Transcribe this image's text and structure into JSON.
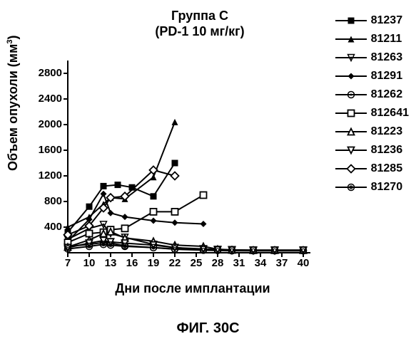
{
  "chart": {
    "type": "line-scatter",
    "title_line1": "Группа С",
    "title_line2": "(PD-1 10 мг/кг)",
    "ylabel_html": "Объем опухоли (мм³)",
    "ylabel_base": "Объем опухоли (мм",
    "ylabel_sup": "3",
    "ylabel_close": ")",
    "xlabel": "Дни после имплантации",
    "figure_label": "ФИГ. 30С",
    "background_color": "#ffffff",
    "axis_color": "#000000",
    "line_width": 2,
    "marker_size": 9,
    "xlim": [
      7,
      41
    ],
    "ylim": [
      0,
      3000
    ],
    "xticks": [
      7,
      10,
      13,
      16,
      19,
      22,
      25,
      28,
      31,
      34,
      37,
      40
    ],
    "yticks": [
      400,
      800,
      1200,
      1600,
      2000,
      2400,
      2800
    ],
    "font_family": "Arial",
    "title_fontsize": 18,
    "label_fontsize": 18,
    "tick_fontsize": 15,
    "legend_fontsize": 16,
    "series": [
      {
        "id": "81237",
        "label": "81237",
        "marker": "filled-square",
        "color": "#000000",
        "x": [
          7,
          10,
          12,
          14,
          16,
          19,
          22
        ],
        "y": [
          320,
          720,
          1040,
          1060,
          1020,
          880,
          1400
        ]
      },
      {
        "id": "81211",
        "label": "81211",
        "marker": "filled-triangle",
        "color": "#000000",
        "x": [
          7,
          10,
          12,
          13,
          15,
          19,
          22
        ],
        "y": [
          400,
          560,
          760,
          860,
          840,
          1180,
          2040
        ]
      },
      {
        "id": "81263",
        "label": "81263",
        "marker": "down-triangle-dot",
        "color": "#000000",
        "x": [
          7,
          10,
          12,
          13,
          15,
          19,
          22,
          26,
          28,
          30,
          33,
          36,
          40
        ],
        "y": [
          210,
          380,
          440,
          300,
          240,
          130,
          80,
          50,
          40,
          35,
          30,
          30,
          30
        ]
      },
      {
        "id": "81291",
        "label": "81291",
        "marker": "filled-diamond",
        "color": "#000000",
        "x": [
          7,
          10,
          12,
          13,
          15,
          19,
          22,
          26
        ],
        "y": [
          180,
          520,
          920,
          620,
          560,
          500,
          470,
          450
        ]
      },
      {
        "id": "81262",
        "label": "81262",
        "marker": "circle-dot",
        "color": "#000000",
        "x": [
          7,
          10,
          12,
          13,
          15,
          19,
          22,
          26,
          28,
          30,
          33,
          36,
          40
        ],
        "y": [
          100,
          130,
          160,
          150,
          110,
          80,
          55,
          40,
          35,
          30,
          30,
          30,
          30
        ]
      },
      {
        "id": "812641",
        "label": "812641",
        "marker": "open-square",
        "color": "#000000",
        "x": [
          7,
          10,
          12,
          13,
          15,
          19,
          22,
          26
        ],
        "y": [
          160,
          300,
          320,
          360,
          380,
          640,
          640,
          900
        ]
      },
      {
        "id": "81223",
        "label": "81223",
        "marker": "open-triangle",
        "color": "#000000",
        "x": [
          7,
          10,
          12,
          13,
          15,
          19,
          22,
          26,
          28,
          30,
          33,
          36,
          40
        ],
        "y": [
          90,
          200,
          300,
          330,
          230,
          180,
          120,
          100,
          55,
          45,
          40,
          40,
          40
        ]
      },
      {
        "id": "81236",
        "label": "81236",
        "marker": "open-down-triangle",
        "color": "#000000",
        "x": [
          7,
          10,
          12,
          13,
          15,
          19,
          22,
          26,
          28,
          30,
          33,
          36,
          40
        ],
        "y": [
          80,
          150,
          190,
          170,
          150,
          120,
          80,
          60,
          50,
          45,
          40,
          40,
          40
        ]
      },
      {
        "id": "81285",
        "label": "81285",
        "marker": "open-diamond",
        "color": "#000000",
        "x": [
          7,
          10,
          12,
          13,
          15,
          19,
          22
        ],
        "y": [
          280,
          420,
          700,
          860,
          880,
          1290,
          1200
        ]
      },
      {
        "id": "81270",
        "label": "81270",
        "marker": "double-circle",
        "color": "#000000",
        "x": [
          7,
          10,
          12,
          13,
          15,
          19,
          22,
          26,
          28,
          30,
          33,
          36,
          40
        ],
        "y": [
          60,
          100,
          130,
          120,
          100,
          80,
          60,
          50,
          45,
          40,
          40,
          40,
          40
        ]
      }
    ]
  }
}
